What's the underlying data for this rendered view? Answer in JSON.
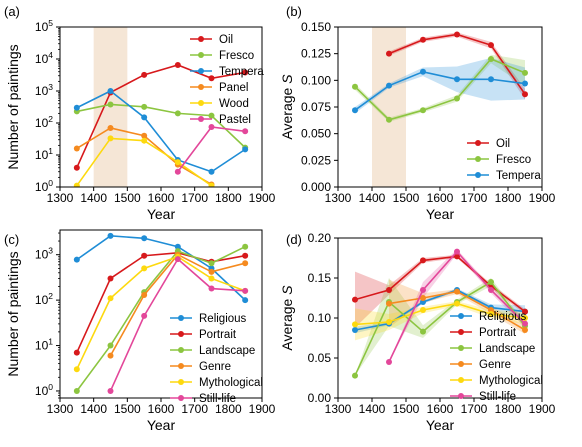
{
  "chart_data": [
    {
      "panel_label": "(a)",
      "type": "line",
      "xlabel": "Year",
      "ylabel": "Number of paintings",
      "xlim": [
        1300,
        1900
      ],
      "ylim": [
        1,
        100000
      ],
      "y_scale": "log",
      "x_ticks": [
        "1300",
        "1400",
        "1500",
        "1600",
        "1700",
        "1800",
        "1900"
      ],
      "y_ticks": [
        {
          "v": 1,
          "m": "0"
        },
        {
          "v": 10,
          "m": "1"
        },
        {
          "v": 100,
          "m": "2"
        },
        {
          "v": 1000,
          "m": "3"
        },
        {
          "v": 10000,
          "m": "4"
        },
        {
          "v": 100000,
          "m": "5"
        }
      ],
      "shaded_span": [
        1400,
        1500
      ],
      "legend_position": "top-right",
      "grid": false,
      "series": [
        {
          "name": "Oil",
          "color": "#d7191c",
          "x": [
            1350,
            1450,
            1550,
            1650,
            1750,
            1850
          ],
          "y": [
            4,
            900,
            3200,
            6500,
            2500,
            3800
          ]
        },
        {
          "name": "Fresco",
          "color": "#8cc540",
          "x": [
            1350,
            1450,
            1550,
            1650,
            1750,
            1850
          ],
          "y": [
            230,
            380,
            320,
            200,
            170,
            17
          ]
        },
        {
          "name": "Tempera",
          "color": "#1f8dd6",
          "x": [
            1350,
            1450,
            1550,
            1650,
            1750,
            1850
          ],
          "y": [
            300,
            1000,
            150,
            7,
            3,
            15
          ]
        },
        {
          "name": "Panel",
          "color": "#f58a1f",
          "x": [
            1350,
            1450,
            1550,
            1650,
            1750
          ],
          "y": [
            16,
            70,
            40,
            5,
            1.2
          ]
        },
        {
          "name": "Wood",
          "color": "#fdd90f",
          "x": [
            1350,
            1450,
            1550,
            1650,
            1750
          ],
          "y": [
            1.1,
            33,
            28,
            6,
            1.1
          ]
        },
        {
          "name": "Pastel",
          "color": "#e3479a",
          "x": [
            1650,
            1750,
            1850
          ],
          "y": [
            3,
            75,
            55
          ]
        }
      ]
    },
    {
      "panel_label": "(b)",
      "type": "line",
      "xlabel": "Year",
      "ylabel": "Average S",
      "xlim": [
        1300,
        1900
      ],
      "ylim": [
        0,
        0.15
      ],
      "x_ticks": [
        "1300",
        "1400",
        "1500",
        "1600",
        "1700",
        "1800",
        "1900"
      ],
      "y_ticks": [
        "0.000",
        "0.025",
        "0.050",
        "0.075",
        "0.100",
        "0.125",
        "0.150"
      ],
      "shaded_span": [
        1400,
        1500
      ],
      "legend_position": "bottom-right",
      "grid": false,
      "series": [
        {
          "name": "Oil",
          "color": "#d7191c",
          "x": [
            1450,
            1550,
            1650,
            1750,
            1850
          ],
          "y": [
            0.125,
            0.138,
            0.143,
            0.133,
            0.087
          ],
          "err": [
            0.002,
            0.002,
            0.002,
            0.003,
            0.005
          ]
        },
        {
          "name": "Fresco",
          "color": "#8cc540",
          "x": [
            1350,
            1450,
            1550,
            1650,
            1750,
            1850
          ],
          "y": [
            0.094,
            0.063,
            0.072,
            0.083,
            0.12,
            0.107
          ],
          "err": [
            0.003,
            0.002,
            0.002,
            0.003,
            0.004,
            0.012
          ]
        },
        {
          "name": "Tempera",
          "color": "#1f8dd6",
          "x": [
            1350,
            1450,
            1550,
            1650,
            1750,
            1850
          ],
          "y": [
            0.072,
            0.095,
            0.108,
            0.101,
            0.101,
            0.097
          ],
          "err": [
            0.003,
            0.002,
            0.004,
            0.012,
            0.02,
            0.015
          ]
        }
      ]
    },
    {
      "panel_label": "(c)",
      "type": "line",
      "xlabel": "Year",
      "ylabel": "Number of paintings",
      "xlim": [
        1300,
        1900
      ],
      "ylim": [
        0.7,
        3500
      ],
      "y_scale": "log",
      "x_ticks": [
        "1300",
        "1400",
        "1500",
        "1600",
        "1700",
        "1800",
        "1900"
      ],
      "y_ticks": [
        {
          "v": 1,
          "m": "0"
        },
        {
          "v": 10,
          "m": "1"
        },
        {
          "v": 100,
          "m": "2"
        },
        {
          "v": 1000,
          "m": "3"
        }
      ],
      "legend_position": "bottom-right",
      "grid": false,
      "series": [
        {
          "name": "Religious",
          "color": "#1f8dd6",
          "x": [
            1350,
            1450,
            1550,
            1650,
            1750,
            1850
          ],
          "y": [
            780,
            2600,
            2300,
            1500,
            500,
            100
          ]
        },
        {
          "name": "Portrait",
          "color": "#d7191c",
          "x": [
            1350,
            1450,
            1550,
            1650,
            1750,
            1850
          ],
          "y": [
            7,
            300,
            950,
            1100,
            700,
            950
          ]
        },
        {
          "name": "Landscape",
          "color": "#8cc540",
          "x": [
            1350,
            1450,
            1550,
            1650,
            1750,
            1850
          ],
          "y": [
            1,
            10,
            150,
            1200,
            650,
            1500
          ]
        },
        {
          "name": "Genre",
          "color": "#f58a1f",
          "x": [
            1450,
            1550,
            1650,
            1750,
            1850
          ],
          "y": [
            6,
            130,
            1000,
            420,
            650
          ]
        },
        {
          "name": "Mythological",
          "color": "#fdd90f",
          "x": [
            1350,
            1450,
            1550,
            1650,
            1750,
            1850
          ],
          "y": [
            3,
            110,
            500,
            900,
            300,
            160
          ]
        },
        {
          "name": "Still-life",
          "color": "#e3479a",
          "x": [
            1450,
            1550,
            1650,
            1750,
            1850
          ],
          "y": [
            1,
            45,
            800,
            180,
            160
          ]
        }
      ]
    },
    {
      "panel_label": "(d)",
      "type": "line",
      "xlabel": "Year",
      "ylabel": "Average S",
      "xlim": [
        1300,
        1900
      ],
      "ylim": [
        0,
        0.2
      ],
      "x_ticks": [
        "1300",
        "1400",
        "1500",
        "1600",
        "1700",
        "1800",
        "1900"
      ],
      "y_ticks": [
        "0.00",
        "0.05",
        "0.10",
        "0.15",
        "0.20"
      ],
      "legend_position": "bottom-right",
      "grid": false,
      "series": [
        {
          "name": "Religious",
          "color": "#1f8dd6",
          "x": [
            1350,
            1450,
            1550,
            1650,
            1750,
            1850
          ],
          "y": [
            0.085,
            0.093,
            0.12,
            0.135,
            0.113,
            0.108
          ],
          "err": [
            0.004,
            0.002,
            0.002,
            0.002,
            0.004,
            0.008
          ]
        },
        {
          "name": "Portrait",
          "color": "#d7191c",
          "x": [
            1350,
            1450,
            1550,
            1650,
            1750,
            1850
          ],
          "y": [
            0.123,
            0.135,
            0.172,
            0.177,
            0.14,
            0.108
          ],
          "err": [
            0.035,
            0.006,
            0.003,
            0.002,
            0.003,
            0.003
          ]
        },
        {
          "name": "Landscape",
          "color": "#8cc540",
          "x": [
            1350,
            1450,
            1550,
            1650,
            1750,
            1850
          ],
          "y": [
            0.028,
            0.12,
            0.083,
            0.12,
            0.145,
            0.09
          ],
          "err": [
            0.0,
            0.03,
            0.008,
            0.003,
            0.005,
            0.004
          ]
        },
        {
          "name": "Genre",
          "color": "#f58a1f",
          "x": [
            1450,
            1550,
            1650,
            1750,
            1850
          ],
          "y": [
            0.118,
            0.125,
            0.133,
            0.11,
            0.085
          ],
          "err": [
            0.03,
            0.006,
            0.003,
            0.005,
            0.005
          ]
        },
        {
          "name": "Mythological",
          "color": "#fdd90f",
          "x": [
            1350,
            1450,
            1550,
            1650,
            1750,
            1850
          ],
          "y": [
            0.092,
            0.095,
            0.11,
            0.118,
            0.105,
            0.1
          ],
          "err": [
            0.02,
            0.01,
            0.004,
            0.003,
            0.005,
            0.008
          ]
        },
        {
          "name": "Still-life",
          "color": "#e3479a",
          "x": [
            1450,
            1550,
            1650,
            1750,
            1850
          ],
          "y": [
            0.045,
            0.135,
            0.183,
            0.135,
            0.093
          ],
          "err": [
            0.0,
            0.01,
            0.003,
            0.004,
            0.005
          ]
        }
      ]
    }
  ]
}
